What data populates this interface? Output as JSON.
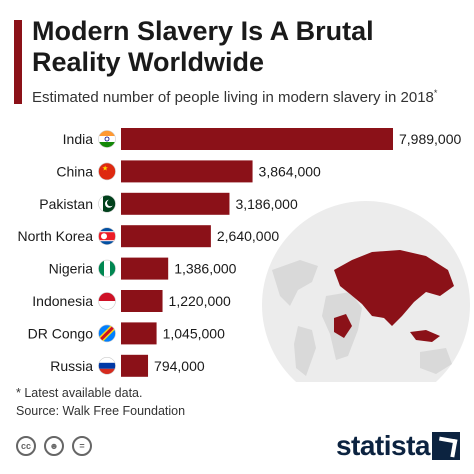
{
  "header": {
    "title": "Modern Slavery Is A Brutal Reality Worldwide",
    "subtitle": "Estimated number of people living in modern slavery in 2018",
    "subtitle_mark": "*"
  },
  "footer": {
    "note": "* Latest available data.",
    "source": "Source: Walk Free Foundation",
    "logo": "statista",
    "license_icons": [
      "cc-icon",
      "person-icon",
      "equals-icon"
    ]
  },
  "colors": {
    "bar": "#8b1118",
    "map_land": "#d9d9d9",
    "map_highlight": "#8b1118",
    "map_circle": "#ececec"
  },
  "chart_data": {
    "type": "bar",
    "orientation": "horizontal",
    "title": "Modern Slavery Is A Brutal Reality Worldwide",
    "subtitle": "Estimated number of people living in modern slavery in 2018*",
    "categories": [
      "India",
      "China",
      "Pakistan",
      "North Korea",
      "Nigeria",
      "Indonesia",
      "DR Congo",
      "Russia"
    ],
    "values": [
      7989000,
      3864000,
      3186000,
      2640000,
      1386000,
      1220000,
      1045000,
      794000
    ],
    "value_labels": [
      "7,989,000",
      "3,864,000",
      "3,186,000",
      "2,640,000",
      "1,386,000",
      "1,220,000",
      "1,045,000",
      "794,000"
    ],
    "flags": [
      "india-flag-icon",
      "china-flag-icon",
      "pakistan-flag-icon",
      "north-korea-flag-icon",
      "nigeria-flag-icon",
      "indonesia-flag-icon",
      "dr-congo-flag-icon",
      "russia-flag-icon"
    ],
    "xlim": [
      0,
      7989000
    ],
    "grid": false,
    "legend": "none"
  }
}
